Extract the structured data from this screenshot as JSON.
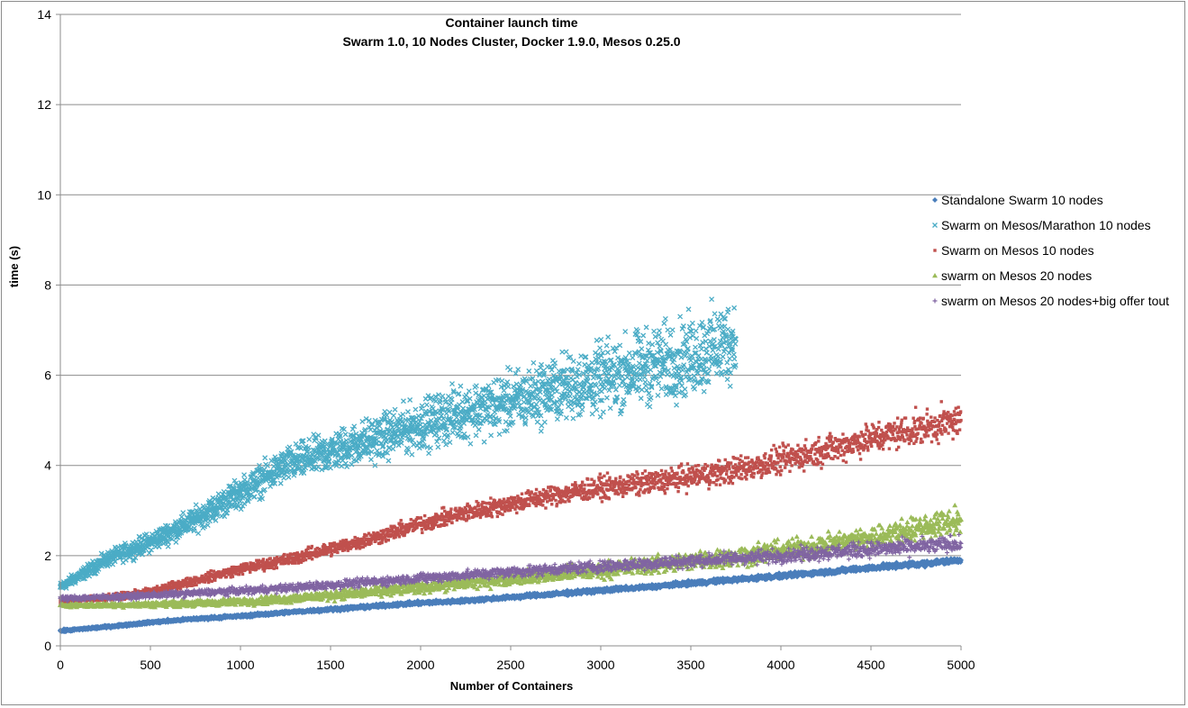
{
  "chart_data": {
    "type": "scatter",
    "title": "Container launch time",
    "subtitle": "Swarm 1.0, 10 Nodes Cluster, Docker 1.9.0, Mesos 0.25.0",
    "xlabel": "Number of Containers",
    "ylabel": "time (s)",
    "xlim": [
      0,
      5000
    ],
    "ylim": [
      0,
      14
    ],
    "x_ticks": [
      "0",
      "500",
      "1000",
      "1500",
      "2000",
      "2500",
      "3000",
      "3500",
      "4000",
      "4500",
      "5000"
    ],
    "y_ticks": [
      "0",
      "2",
      "4",
      "6",
      "8",
      "10",
      "12",
      "14"
    ],
    "grid": "horizontal",
    "legend_position": "right",
    "series": [
      {
        "name": "Standalone Swarm 10 nodes",
        "marker": "diamond",
        "color": "#4a7ebb",
        "x": [
          0,
          250,
          500,
          750,
          1000,
          1250,
          1500,
          1750,
          2000,
          2250,
          2500,
          2750,
          3000,
          3250,
          3500,
          3750,
          4000,
          4250,
          4500,
          4750,
          5000
        ],
        "y": [
          0.33,
          0.42,
          0.52,
          0.6,
          0.66,
          0.74,
          0.81,
          0.88,
          0.95,
          1.0,
          1.08,
          1.15,
          1.23,
          1.3,
          1.39,
          1.47,
          1.55,
          1.64,
          1.73,
          1.81,
          1.9
        ]
      },
      {
        "name": "Swarm on Mesos/Marathon 10 nodes",
        "marker": "x",
        "color": "#4bacc6",
        "x": [
          0,
          250,
          500,
          750,
          1000,
          1250,
          1500,
          1750,
          2000,
          2250,
          2500,
          2750,
          3000,
          3250,
          3500,
          3750
        ],
        "y": [
          1.3,
          1.9,
          2.3,
          2.8,
          3.4,
          4.0,
          4.3,
          4.6,
          4.9,
          5.2,
          5.4,
          5.7,
          5.9,
          6.2,
          6.4,
          6.8
        ]
      },
      {
        "name": "Swarm on Mesos 10 nodes",
        "marker": "square",
        "color": "#c0504d",
        "x": [
          0,
          250,
          500,
          750,
          1000,
          1250,
          1500,
          1750,
          2000,
          2250,
          2500,
          2750,
          3000,
          3250,
          3500,
          3750,
          4000,
          4250,
          4500,
          4750,
          5000
        ],
        "y": [
          1.0,
          1.05,
          1.2,
          1.45,
          1.7,
          1.9,
          2.15,
          2.4,
          2.7,
          2.95,
          3.15,
          3.35,
          3.5,
          3.6,
          3.75,
          3.9,
          4.1,
          4.35,
          4.6,
          4.8,
          5.0
        ]
      },
      {
        "name": "swarm on Mesos 20 nodes",
        "marker": "triangle",
        "color": "#9bbb59",
        "x": [
          0,
          250,
          500,
          750,
          1000,
          1250,
          1500,
          1750,
          2000,
          2250,
          2500,
          2750,
          3000,
          3250,
          3500,
          3750,
          4000,
          4250,
          4500,
          4750,
          5000
        ],
        "y": [
          0.9,
          0.9,
          0.92,
          0.94,
          0.98,
          1.04,
          1.12,
          1.2,
          1.3,
          1.4,
          1.5,
          1.58,
          1.68,
          1.78,
          1.88,
          1.98,
          2.1,
          2.25,
          2.4,
          2.6,
          2.8
        ]
      },
      {
        "name": "swarm on Mesos 20 nodes+big offer tout",
        "marker": "plus",
        "color": "#8064a2",
        "x": [
          0,
          250,
          500,
          750,
          1000,
          1250,
          1500,
          1750,
          2000,
          2250,
          2500,
          2750,
          3000,
          3250,
          3500,
          3750,
          4000,
          4250,
          4500,
          4750,
          5000
        ],
        "y": [
          1.05,
          1.08,
          1.12,
          1.17,
          1.22,
          1.28,
          1.35,
          1.42,
          1.5,
          1.57,
          1.64,
          1.7,
          1.76,
          1.82,
          1.88,
          1.94,
          2.0,
          2.07,
          2.14,
          2.2,
          2.27
        ]
      }
    ]
  }
}
